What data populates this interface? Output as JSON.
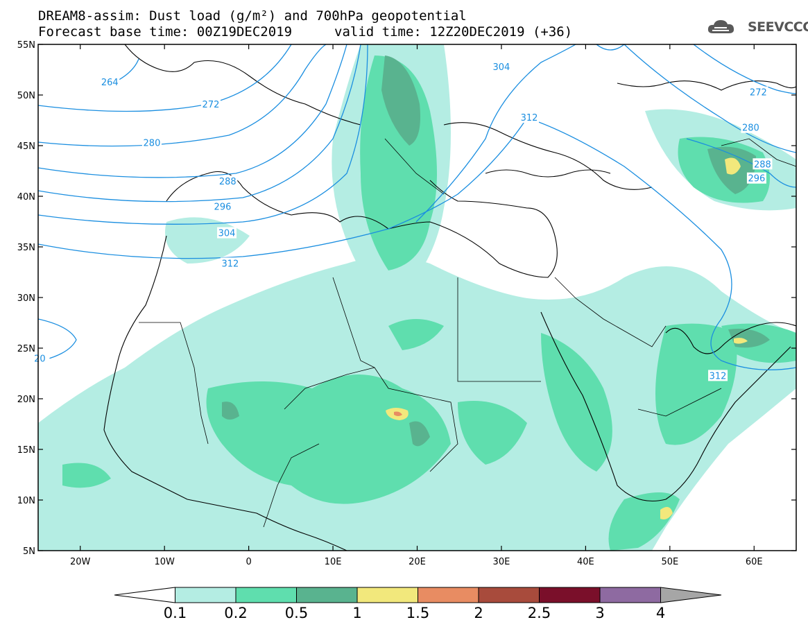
{
  "header": {
    "title_line1": "DREAM8-assim: Dust load (g/m²) and 700hPa geopotential",
    "title_line2a": "Forecast base time: 00Z19DEC2019",
    "title_line2b": "valid time: 12Z20DEC2019 (+36)",
    "logo_text": "SEEVCCC"
  },
  "axes": {
    "lat_ticks": [
      {
        "value": 55,
        "label": "55N"
      },
      {
        "value": 50,
        "label": "50N"
      },
      {
        "value": 45,
        "label": "45N"
      },
      {
        "value": 40,
        "label": "40N"
      },
      {
        "value": 35,
        "label": "35N"
      },
      {
        "value": 30,
        "label": "30N"
      },
      {
        "value": 25,
        "label": "25N"
      },
      {
        "value": 20,
        "label": "20N"
      },
      {
        "value": 15,
        "label": "15N"
      },
      {
        "value": 10,
        "label": "10N"
      },
      {
        "value": 5,
        "label": "5N"
      }
    ],
    "lon_ticks": [
      {
        "value": -20,
        "label": "20W"
      },
      {
        "value": -10,
        "label": "10W"
      },
      {
        "value": 0,
        "label": "0"
      },
      {
        "value": 10,
        "label": "10E"
      },
      {
        "value": 20,
        "label": "20E"
      },
      {
        "value": 30,
        "label": "30E"
      },
      {
        "value": 40,
        "label": "40E"
      },
      {
        "value": 50,
        "label": "50E"
      },
      {
        "value": 60,
        "label": "60E"
      }
    ],
    "lon_range": [
      -25,
      65
    ],
    "lat_range": [
      5,
      55
    ]
  },
  "contours": {
    "color": "#1a8ee0",
    "labels": [
      {
        "text": "264",
        "lon": -16.5,
        "lat": 51.3
      },
      {
        "text": "272",
        "lon": -4.5,
        "lat": 49.1
      },
      {
        "text": "280",
        "lon": -11.5,
        "lat": 45.3
      },
      {
        "text": "288",
        "lon": -2.5,
        "lat": 41.5
      },
      {
        "text": "296",
        "lon": -3.1,
        "lat": 39.0
      },
      {
        "text": "304",
        "lon": -2.6,
        "lat": 36.4
      },
      {
        "text": "312",
        "lon": -2.2,
        "lat": 33.4
      },
      {
        "text": "304",
        "lon": 30.0,
        "lat": 52.8
      },
      {
        "text": "312",
        "lon": 33.3,
        "lat": 47.8
      },
      {
        "text": "272",
        "lon": 60.5,
        "lat": 50.3
      },
      {
        "text": "280",
        "lon": 59.6,
        "lat": 46.8
      },
      {
        "text": "288",
        "lon": 61.0,
        "lat": 43.2
      },
      {
        "text": "296",
        "lon": 60.3,
        "lat": 41.8
      },
      {
        "text": "312",
        "lon": 55.7,
        "lat": 22.3
      },
      {
        "text": "20",
        "lon": -24.8,
        "lat": 24.0
      }
    ]
  },
  "colorbar": {
    "classes": [
      {
        "color": "#ffffff"
      },
      {
        "color": "#b4ede3"
      },
      {
        "color": "#5fdeae"
      },
      {
        "color": "#59b38f"
      },
      {
        "color": "#f2e87c"
      },
      {
        "color": "#e88c62"
      },
      {
        "color": "#a84b3c"
      },
      {
        "color": "#7a0f2a"
      },
      {
        "color": "#8e6aa1"
      },
      {
        "color": "#a6a6a6"
      }
    ],
    "labels": [
      "0.1",
      "0.2",
      "0.5",
      "1",
      "1.5",
      "2",
      "2.5",
      "3",
      "4"
    ]
  }
}
